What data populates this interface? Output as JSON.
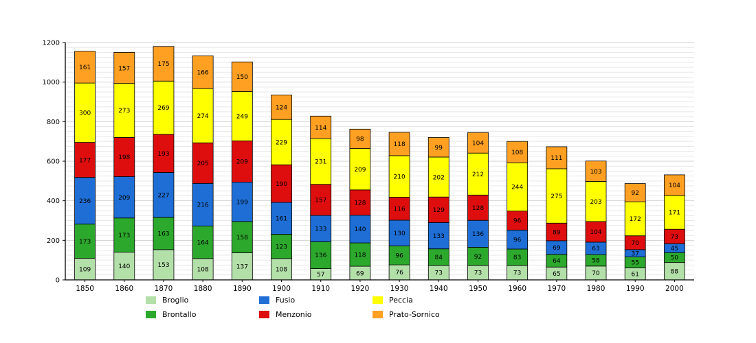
{
  "chart_data": {
    "type": "bar",
    "stacked": true,
    "title": "",
    "xlabel": "",
    "ylabel": "",
    "categories": [
      "1850",
      "1860",
      "1870",
      "1880",
      "1890",
      "1900",
      "1910",
      "1920",
      "1930",
      "1940",
      "1950",
      "1960",
      "1970",
      "1980",
      "1990",
      "2000"
    ],
    "series": [
      {
        "name": "Broglio",
        "color": "#b3dfa9",
        "values": [
          109,
          140,
          153,
          108,
          137,
          108,
          57,
          69,
          76,
          73,
          73,
          73,
          65,
          70,
          61,
          88
        ]
      },
      {
        "name": "Brontallo",
        "color": "#2ca82c",
        "values": [
          173,
          173,
          163,
          164,
          158,
          123,
          136,
          118,
          96,
          84,
          92,
          83,
          64,
          58,
          55,
          50
        ]
      },
      {
        "name": "Fusio",
        "color": "#1e6ed6",
        "values": [
          236,
          209,
          227,
          216,
          199,
          161,
          133,
          140,
          130,
          133,
          136,
          96,
          69,
          63,
          37,
          45
        ]
      },
      {
        "name": "Menzonio",
        "color": "#df0e0e",
        "values": [
          177,
          198,
          193,
          205,
          209,
          190,
          157,
          128,
          116,
          129,
          128,
          96,
          89,
          104,
          70,
          73
        ]
      },
      {
        "name": "Peccia",
        "color": "#ffff00",
        "values": [
          300,
          273,
          269,
          274,
          249,
          229,
          231,
          209,
          210,
          202,
          212,
          244,
          275,
          203,
          172,
          171
        ]
      },
      {
        "name": "Prato-Sornico",
        "color": "#ffa022",
        "values": [
          161,
          157,
          175,
          166,
          150,
          124,
          114,
          98,
          118,
          99,
          104,
          108,
          111,
          103,
          92,
          104
        ]
      }
    ],
    "ylim": [
      0,
      1200
    ],
    "yticks": [
      0,
      200,
      400,
      600,
      800,
      1000,
      1200
    ],
    "minor_grid_step": 25,
    "grid": "on",
    "legend_position": "bottom",
    "bar_value_labels": true
  }
}
